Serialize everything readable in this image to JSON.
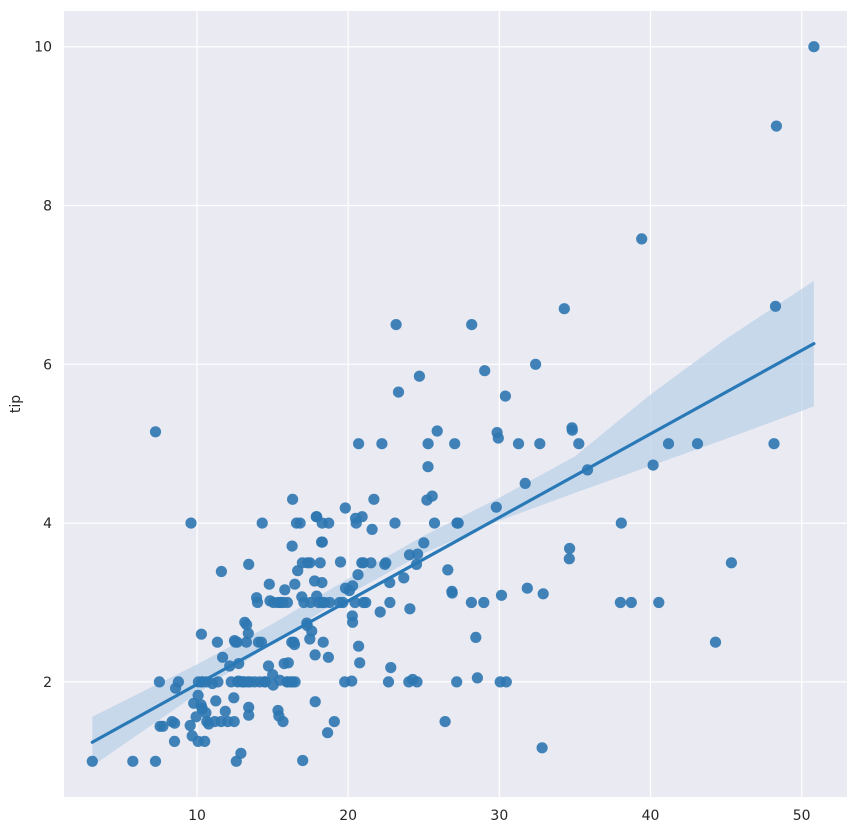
{
  "chart_data": {
    "type": "scatter",
    "title": "",
    "xlabel": "",
    "ylabel": "tip",
    "xlim": [
      1.2,
      53.0
    ],
    "ylim": [
      0.55,
      10.45
    ],
    "xticks": [
      10,
      20,
      30,
      40,
      50
    ],
    "yticks": [
      2,
      4,
      6,
      8,
      10
    ],
    "grid": true,
    "legend": "none",
    "colors": {
      "background": "#eaeaf2",
      "grid": "#ffffff",
      "points": "#2e77b1",
      "line": "#2a79b7",
      "band": "#bcd2e8"
    },
    "regression": {
      "x": [
        3.07,
        50.81
      ],
      "y": [
        1.24,
        6.26
      ]
    },
    "confidence_band": {
      "x": [
        3.07,
        10,
        15,
        20,
        25,
        30,
        35,
        40,
        45,
        50.81
      ],
      "lower": [
        0.94,
        1.85,
        2.49,
        3.1,
        3.62,
        4.03,
        4.38,
        4.72,
        5.06,
        5.47
      ],
      "upper": [
        1.56,
        2.22,
        2.73,
        3.3,
        3.84,
        4.32,
        4.84,
        5.62,
        6.32,
        7.05
      ]
    },
    "points": [
      [
        3.07,
        1.0
      ],
      [
        5.75,
        1.0
      ],
      [
        7.25,
        1.0
      ],
      [
        7.25,
        5.15
      ],
      [
        7.51,
        2.0
      ],
      [
        7.56,
        1.44
      ],
      [
        7.74,
        1.44
      ],
      [
        8.35,
        1.5
      ],
      [
        8.51,
        1.25
      ],
      [
        8.52,
        1.48
      ],
      [
        8.58,
        1.92
      ],
      [
        8.77,
        2.0
      ],
      [
        9.55,
        1.45
      ],
      [
        9.6,
        4.0
      ],
      [
        9.68,
        1.32
      ],
      [
        9.78,
        1.73
      ],
      [
        9.94,
        1.56
      ],
      [
        10.07,
        1.83
      ],
      [
        10.07,
        1.25
      ],
      [
        10.09,
        2.0
      ],
      [
        10.27,
        1.71
      ],
      [
        10.29,
        2.6
      ],
      [
        10.33,
        2.0
      ],
      [
        10.33,
        1.67
      ],
      [
        10.34,
        2.0
      ],
      [
        10.34,
        1.66
      ],
      [
        10.51,
        1.25
      ],
      [
        10.59,
        1.61
      ],
      [
        10.63,
        2.0
      ],
      [
        10.65,
        1.5
      ],
      [
        10.77,
        1.47
      ],
      [
        11.02,
        1.98
      ],
      [
        11.17,
        1.5
      ],
      [
        11.24,
        1.76
      ],
      [
        11.35,
        2.5
      ],
      [
        11.38,
        2.0
      ],
      [
        11.59,
        1.5
      ],
      [
        11.61,
        3.39
      ],
      [
        11.69,
        2.31
      ],
      [
        11.87,
        1.63
      ],
      [
        12.03,
        1.5
      ],
      [
        12.16,
        2.2
      ],
      [
        12.26,
        2.0
      ],
      [
        12.43,
        1.8
      ],
      [
        12.46,
        1.5
      ],
      [
        12.48,
        2.52
      ],
      [
        12.54,
        2.5
      ],
      [
        12.6,
        1.0
      ],
      [
        12.66,
        2.5
      ],
      [
        12.69,
        2.0
      ],
      [
        12.74,
        2.01
      ],
      [
        12.76,
        2.23
      ],
      [
        12.9,
        1.1
      ],
      [
        13.0,
        2.0
      ],
      [
        13.03,
        2.0
      ],
      [
        13.13,
        2.0
      ],
      [
        13.16,
        2.75
      ],
      [
        13.27,
        2.5
      ],
      [
        13.28,
        2.72
      ],
      [
        13.37,
        2.0
      ],
      [
        13.39,
        2.61
      ],
      [
        13.42,
        1.58
      ],
      [
        13.42,
        3.48
      ],
      [
        13.42,
        1.68
      ],
      [
        13.51,
        2.0
      ],
      [
        13.81,
        2.0
      ],
      [
        13.94,
        3.06
      ],
      [
        14.0,
        3.0
      ],
      [
        14.07,
        2.5
      ],
      [
        14.15,
        2.0
      ],
      [
        14.26,
        2.5
      ],
      [
        14.31,
        4.0
      ],
      [
        14.48,
        2.0
      ],
      [
        14.52,
        2.0
      ],
      [
        14.73,
        2.2
      ],
      [
        14.78,
        3.23
      ],
      [
        14.83,
        3.02
      ],
      [
        15.01,
        2.09
      ],
      [
        15.04,
        1.96
      ],
      [
        15.06,
        3.0
      ],
      [
        15.36,
        1.64
      ],
      [
        15.38,
        3.0
      ],
      [
        15.42,
        1.57
      ],
      [
        15.48,
        2.02
      ],
      [
        15.53,
        3.0
      ],
      [
        15.69,
        1.5
      ],
      [
        15.69,
        3.0
      ],
      [
        15.77,
        2.23
      ],
      [
        15.81,
        3.16
      ],
      [
        15.95,
        2.0
      ],
      [
        15.98,
        3.0
      ],
      [
        16.0,
        2.0
      ],
      [
        16.04,
        2.24
      ],
      [
        16.21,
        2.0
      ],
      [
        16.27,
        2.5
      ],
      [
        16.29,
        3.71
      ],
      [
        16.31,
        2.0
      ],
      [
        16.32,
        4.3
      ],
      [
        16.4,
        2.5
      ],
      [
        16.45,
        2.47
      ],
      [
        16.47,
        3.23
      ],
      [
        16.49,
        2.0
      ],
      [
        16.58,
        4.0
      ],
      [
        16.66,
        3.4
      ],
      [
        16.82,
        4.0
      ],
      [
        16.93,
        3.07
      ],
      [
        16.97,
        3.5
      ],
      [
        16.99,
        1.01
      ],
      [
        17.07,
        3.0
      ],
      [
        17.26,
        2.74
      ],
      [
        17.29,
        2.71
      ],
      [
        17.31,
        3.5
      ],
      [
        17.46,
        2.54
      ],
      [
        17.47,
        3.5
      ],
      [
        17.51,
        3.0
      ],
      [
        17.59,
        2.64
      ],
      [
        17.78,
        3.27
      ],
      [
        17.81,
        2.34
      ],
      [
        17.82,
        1.75
      ],
      [
        17.89,
        4.08
      ],
      [
        17.92,
        3.08
      ],
      [
        17.92,
        4.08
      ],
      [
        18.04,
        3.0
      ],
      [
        18.15,
        3.5
      ],
      [
        18.24,
        3.76
      ],
      [
        18.26,
        3.25
      ],
      [
        18.28,
        4.0
      ],
      [
        18.29,
        3.0
      ],
      [
        18.29,
        3.76
      ],
      [
        18.35,
        2.5
      ],
      [
        18.43,
        3.0
      ],
      [
        18.64,
        1.36
      ],
      [
        18.69,
        2.31
      ],
      [
        18.71,
        4.0
      ],
      [
        18.78,
        3.0
      ],
      [
        19.08,
        1.5
      ],
      [
        19.44,
        3.0
      ],
      [
        19.49,
        3.51
      ],
      [
        19.65,
        3.0
      ],
      [
        19.77,
        2.0
      ],
      [
        19.81,
        4.19
      ],
      [
        19.82,
        3.18
      ],
      [
        20.08,
        3.15
      ],
      [
        20.23,
        2.01
      ],
      [
        20.27,
        2.83
      ],
      [
        20.29,
        2.75
      ],
      [
        20.29,
        3.21
      ],
      [
        20.45,
        3.0
      ],
      [
        20.49,
        4.06
      ],
      [
        20.53,
        4.0
      ],
      [
        20.65,
        3.35
      ],
      [
        20.69,
        2.45
      ],
      [
        20.69,
        5.0
      ],
      [
        20.76,
        2.24
      ],
      [
        20.9,
        3.5
      ],
      [
        20.92,
        4.08
      ],
      [
        21.01,
        3.0
      ],
      [
        21.01,
        3.5
      ],
      [
        21.16,
        3.0
      ],
      [
        21.5,
        3.5
      ],
      [
        21.58,
        3.92
      ],
      [
        21.7,
        4.3
      ],
      [
        22.12,
        2.88
      ],
      [
        22.23,
        5.0
      ],
      [
        22.42,
        3.48
      ],
      [
        22.49,
        3.5
      ],
      [
        22.67,
        2.0
      ],
      [
        22.75,
        3.25
      ],
      [
        22.76,
        3.0
      ],
      [
        22.82,
        2.18
      ],
      [
        23.1,
        4.0
      ],
      [
        23.17,
        6.5
      ],
      [
        23.33,
        5.65
      ],
      [
        23.68,
        3.31
      ],
      [
        24.01,
        2.0
      ],
      [
        24.06,
        3.6
      ],
      [
        24.08,
        2.92
      ],
      [
        24.27,
        2.03
      ],
      [
        24.52,
        3.48
      ],
      [
        24.55,
        2.0
      ],
      [
        24.59,
        3.61
      ],
      [
        24.71,
        5.85
      ],
      [
        25.0,
        3.75
      ],
      [
        25.21,
        4.29
      ],
      [
        25.28,
        4.71
      ],
      [
        25.29,
        5.0
      ],
      [
        25.56,
        4.34
      ],
      [
        25.71,
        4.0
      ],
      [
        25.89,
        5.16
      ],
      [
        26.41,
        1.5
      ],
      [
        26.59,
        3.41
      ],
      [
        26.86,
        3.14
      ],
      [
        26.88,
        3.12
      ],
      [
        27.05,
        5.0
      ],
      [
        27.18,
        2.0
      ],
      [
        27.2,
        4.0
      ],
      [
        27.28,
        4.0
      ],
      [
        28.15,
        3.0
      ],
      [
        28.17,
        6.5
      ],
      [
        28.44,
        2.56
      ],
      [
        28.55,
        2.05
      ],
      [
        28.97,
        3.0
      ],
      [
        29.03,
        5.92
      ],
      [
        29.8,
        4.2
      ],
      [
        29.85,
        5.14
      ],
      [
        29.93,
        5.07
      ],
      [
        30.06,
        2.0
      ],
      [
        30.14,
        3.09
      ],
      [
        30.4,
        5.6
      ],
      [
        30.46,
        2.0
      ],
      [
        31.27,
        5.0
      ],
      [
        31.71,
        4.5
      ],
      [
        31.85,
        3.18
      ],
      [
        32.4,
        6.0
      ],
      [
        32.68,
        5.0
      ],
      [
        32.83,
        1.17
      ],
      [
        32.9,
        3.11
      ],
      [
        34.3,
        6.7
      ],
      [
        34.63,
        3.55
      ],
      [
        34.65,
        3.68
      ],
      [
        34.81,
        5.2
      ],
      [
        34.83,
        5.17
      ],
      [
        35.26,
        5.0
      ],
      [
        35.83,
        4.67
      ],
      [
        38.01,
        3.0
      ],
      [
        38.07,
        4.0
      ],
      [
        38.73,
        3.0
      ],
      [
        39.42,
        7.58
      ],
      [
        40.17,
        4.73
      ],
      [
        40.55,
        3.0
      ],
      [
        41.19,
        5.0
      ],
      [
        43.11,
        5.0
      ],
      [
        44.3,
        2.5
      ],
      [
        45.35,
        3.5
      ],
      [
        48.17,
        5.0
      ],
      [
        48.27,
        6.73
      ],
      [
        48.33,
        9.0
      ],
      [
        50.81,
        10.0
      ]
    ]
  }
}
